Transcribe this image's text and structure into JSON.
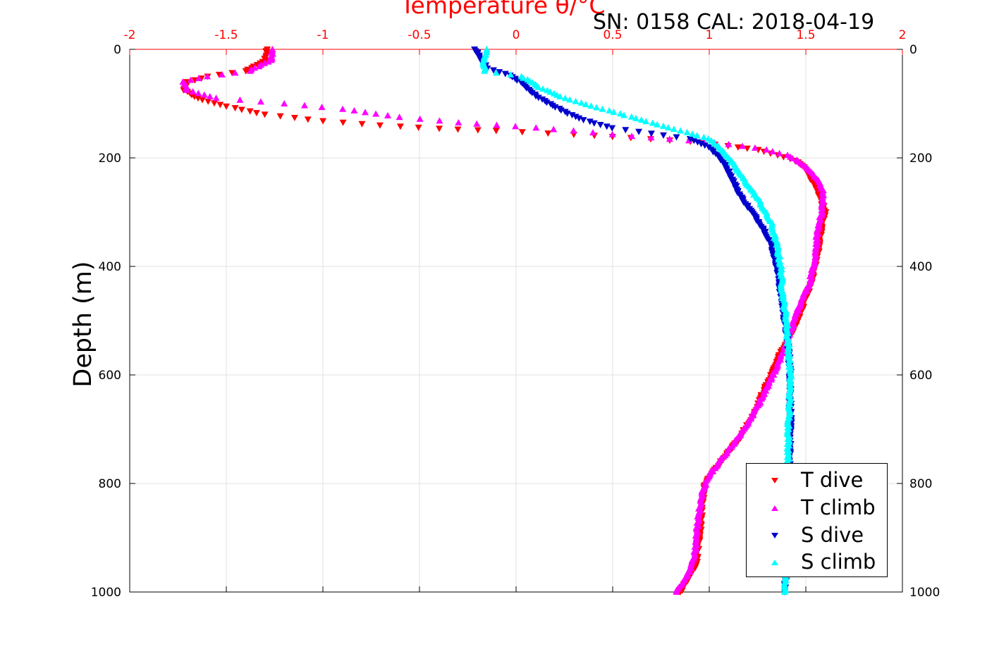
{
  "header": {
    "xlabel": "Temperature θ/°C",
    "sn_cal": "SN: 0158  CAL: 2018-04-19",
    "ylabel": "Depth (m)"
  },
  "chart_data": {
    "type": "scatter",
    "title": "SN: 0158  CAL: 2018-04-19",
    "xlabel": "Temperature θ/°C",
    "ylabel": "Depth (m)",
    "xlim": [
      -2,
      2
    ],
    "ylim": [
      1000,
      0
    ],
    "y_reversed": true,
    "x_axis_position": "top",
    "grid": true,
    "legend_position": "bottom-right",
    "x_ticks": [
      "-2",
      "-1.5",
      "-1",
      "-0.5",
      "0",
      "0.5",
      "1",
      "1.5",
      "2"
    ],
    "y_ticks": [
      "0",
      "200",
      "400",
      "600",
      "800",
      "1000"
    ],
    "series": [
      {
        "name": "T dive",
        "marker": "triangle-down",
        "color": "#ff0000",
        "points": [
          [
            -1.29,
            0
          ],
          [
            -1.3,
            20
          ],
          [
            -1.4,
            40
          ],
          [
            -1.6,
            50
          ],
          [
            -1.7,
            60
          ],
          [
            -1.72,
            75
          ],
          [
            -1.65,
            90
          ],
          [
            -1.5,
            105
          ],
          [
            -1.3,
            120
          ],
          [
            -1.0,
            132
          ],
          [
            -0.7,
            140
          ],
          [
            -0.4,
            146
          ],
          [
            -0.1,
            150
          ],
          [
            0.3,
            157
          ],
          [
            0.6,
            163
          ],
          [
            0.9,
            170
          ],
          [
            1.1,
            178
          ],
          [
            1.25,
            185
          ],
          [
            1.35,
            195
          ],
          [
            1.45,
            205
          ],
          [
            1.5,
            220
          ],
          [
            1.53,
            240
          ],
          [
            1.56,
            260
          ],
          [
            1.58,
            280
          ],
          [
            1.6,
            300
          ],
          [
            1.58,
            330
          ],
          [
            1.57,
            360
          ],
          [
            1.55,
            400
          ],
          [
            1.52,
            440
          ],
          [
            1.48,
            480
          ],
          [
            1.43,
            520
          ],
          [
            1.37,
            560
          ],
          [
            1.32,
            600
          ],
          [
            1.27,
            640
          ],
          [
            1.22,
            680
          ],
          [
            1.15,
            720
          ],
          [
            1.08,
            750
          ],
          [
            1.02,
            780
          ],
          [
            0.98,
            800
          ],
          [
            0.96,
            850
          ],
          [
            0.95,
            900
          ],
          [
            0.93,
            950
          ],
          [
            0.85,
            1000
          ]
        ]
      },
      {
        "name": "T climb",
        "marker": "triangle-up",
        "color": "#ff00ff",
        "points": [
          [
            -1.26,
            0
          ],
          [
            -1.27,
            20
          ],
          [
            -1.38,
            40
          ],
          [
            -1.6,
            50
          ],
          [
            -1.72,
            60
          ],
          [
            -1.7,
            75
          ],
          [
            -1.55,
            90
          ],
          [
            -1.2,
            100
          ],
          [
            -0.9,
            110
          ],
          [
            -0.6,
            125
          ],
          [
            -0.3,
            135
          ],
          [
            0.0,
            142
          ],
          [
            0.3,
            150
          ],
          [
            0.6,
            160
          ],
          [
            0.9,
            168
          ],
          [
            1.1,
            175
          ],
          [
            1.3,
            185
          ],
          [
            1.4,
            195
          ],
          [
            1.48,
            210
          ],
          [
            1.55,
            235
          ],
          [
            1.59,
            260
          ],
          [
            1.58,
            300
          ],
          [
            1.56,
            340
          ],
          [
            1.55,
            380
          ],
          [
            1.52,
            430
          ],
          [
            1.47,
            470
          ],
          [
            1.42,
            520
          ],
          [
            1.38,
            560
          ],
          [
            1.33,
            600
          ],
          [
            1.26,
            650
          ],
          [
            1.2,
            690
          ],
          [
            1.12,
            730
          ],
          [
            1.05,
            760
          ],
          [
            0.99,
            790
          ],
          [
            0.96,
            820
          ],
          [
            0.94,
            870
          ],
          [
            0.93,
            920
          ],
          [
            0.9,
            960
          ],
          [
            0.83,
            1000
          ]
        ]
      },
      {
        "name": "S dive",
        "marker": "triangle-down",
        "color": "#0000cd",
        "points": [
          [
            -0.21,
            0
          ],
          [
            -0.18,
            20
          ],
          [
            -0.15,
            35
          ],
          [
            -0.05,
            45
          ],
          [
            0.02,
            60
          ],
          [
            0.08,
            80
          ],
          [
            0.15,
            95
          ],
          [
            0.25,
            115
          ],
          [
            0.35,
            130
          ],
          [
            0.5,
            145
          ],
          [
            0.7,
            155
          ],
          [
            0.9,
            165
          ],
          [
            1.0,
            180
          ],
          [
            1.08,
            210
          ],
          [
            1.12,
            240
          ],
          [
            1.16,
            270
          ],
          [
            1.22,
            300
          ],
          [
            1.28,
            330
          ],
          [
            1.32,
            360
          ],
          [
            1.35,
            400
          ],
          [
            1.37,
            450
          ],
          [
            1.39,
            500
          ],
          [
            1.41,
            550
          ],
          [
            1.42,
            600
          ],
          [
            1.42,
            650
          ],
          [
            1.42,
            700
          ],
          [
            1.41,
            800
          ],
          [
            1.41,
            900
          ],
          [
            1.39,
            1000
          ]
        ]
      },
      {
        "name": "S climb",
        "marker": "triangle-up",
        "color": "#00ffff",
        "points": [
          [
            -0.15,
            0
          ],
          [
            -0.17,
            20
          ],
          [
            -0.16,
            40
          ],
          [
            0.03,
            50
          ],
          [
            0.12,
            70
          ],
          [
            0.25,
            90
          ],
          [
            0.45,
            110
          ],
          [
            0.65,
            130
          ],
          [
            0.85,
            150
          ],
          [
            1.0,
            165
          ],
          [
            1.08,
            190
          ],
          [
            1.14,
            220
          ],
          [
            1.2,
            250
          ],
          [
            1.26,
            280
          ],
          [
            1.32,
            320
          ],
          [
            1.35,
            360
          ],
          [
            1.37,
            400
          ],
          [
            1.38,
            450
          ],
          [
            1.4,
            500
          ],
          [
            1.41,
            550
          ],
          [
            1.42,
            600
          ],
          [
            1.41,
            700
          ],
          [
            1.41,
            800
          ],
          [
            1.41,
            900
          ],
          [
            1.39,
            1000
          ]
        ]
      }
    ]
  }
}
